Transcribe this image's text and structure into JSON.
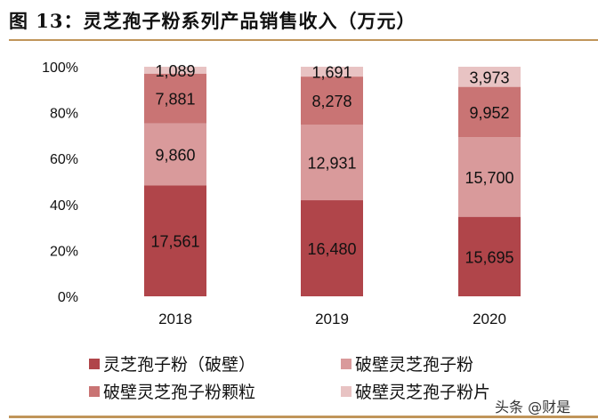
{
  "title": "图 13：灵芝孢子粉系列产品销售收入（万元）",
  "watermark": "头条 @财是",
  "chart_data": {
    "type": "bar",
    "stacked": true,
    "normalized": true,
    "categories": [
      "2018",
      "2019",
      "2020"
    ],
    "series": [
      {
        "name": "灵芝孢子粉（破壁）",
        "color": "#b0454a",
        "values": [
          17561,
          16480,
          15695
        ],
        "labels": [
          "17,561",
          "16,480",
          "15,695"
        ]
      },
      {
        "name": "破壁灵芝孢子粉",
        "color": "#d99a9b",
        "values": [
          9860,
          12931,
          15700
        ],
        "labels": [
          "9,860",
          "12,931",
          "15,700"
        ]
      },
      {
        "name": "破壁灵芝孢子粉颗粒",
        "color": "#c97474",
        "values": [
          7881,
          8278,
          9952
        ],
        "labels": [
          "7,881",
          "8,278",
          "9,952"
        ]
      },
      {
        "name": "破壁灵芝孢子粉片",
        "color": "#e8c3c3",
        "values": [
          1089,
          1691,
          3973
        ],
        "labels": [
          "1,089",
          "1,691",
          "3,973"
        ]
      }
    ],
    "yticks": [
      "0%",
      "20%",
      "40%",
      "60%",
      "80%",
      "100%"
    ],
    "ylim": [
      0,
      100
    ],
    "grid": false,
    "legend": "bottom"
  }
}
